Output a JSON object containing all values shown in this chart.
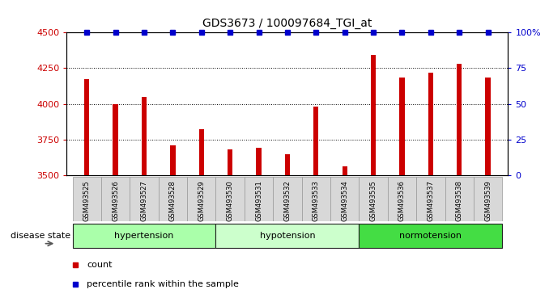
{
  "title": "GDS3673 / 100097684_TGI_at",
  "samples": [
    "GSM493525",
    "GSM493526",
    "GSM493527",
    "GSM493528",
    "GSM493529",
    "GSM493530",
    "GSM493531",
    "GSM493532",
    "GSM493533",
    "GSM493534",
    "GSM493535",
    "GSM493536",
    "GSM493537",
    "GSM493538",
    "GSM493539"
  ],
  "counts": [
    4175,
    4000,
    4050,
    3710,
    3820,
    3680,
    3690,
    3645,
    3980,
    3560,
    4340,
    4185,
    4220,
    4280,
    4185
  ],
  "percentiles": [
    100,
    100,
    100,
    100,
    100,
    100,
    100,
    100,
    100,
    100,
    100,
    100,
    100,
    100,
    100
  ],
  "bar_color": "#cc0000",
  "percentile_color": "#0000cc",
  "ylim_left": [
    3500,
    4500
  ],
  "ylim_right": [
    0,
    100
  ],
  "yticks_left": [
    3500,
    3750,
    4000,
    4250,
    4500
  ],
  "yticks_right": [
    0,
    25,
    50,
    75,
    100
  ],
  "groups": [
    {
      "label": "hypertension",
      "start": 0,
      "end": 5,
      "color": "#aaffaa"
    },
    {
      "label": "hypotension",
      "start": 5,
      "end": 10,
      "color": "#ccffcc"
    },
    {
      "label": "normotension",
      "start": 10,
      "end": 15,
      "color": "#44dd44"
    }
  ],
  "disease_state_label": "disease state",
  "legend_count_label": "count",
  "legend_pct_label": "percentile rank within the sample",
  "tick_label_color_left": "#cc0000",
  "tick_label_color_right": "#0000cc",
  "bar_width": 0.18
}
